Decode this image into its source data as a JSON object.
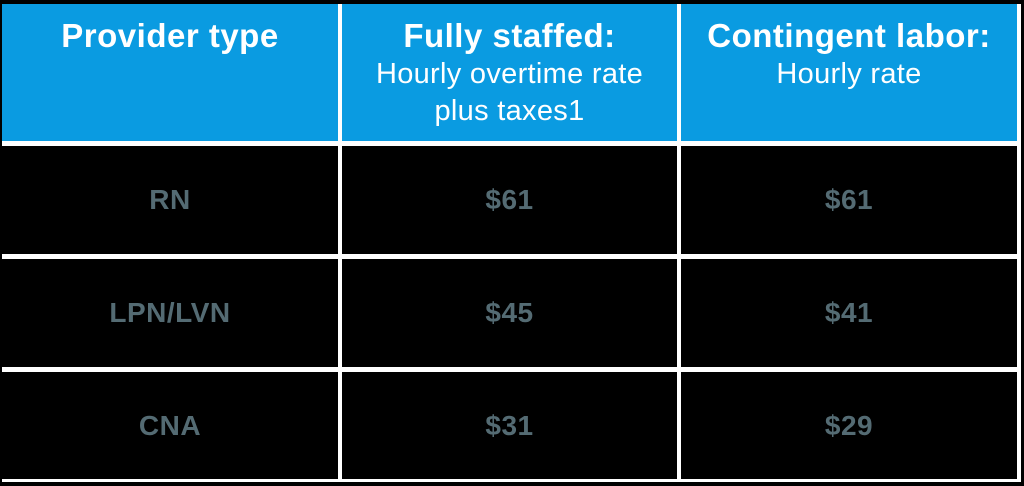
{
  "chart_data": {
    "type": "table",
    "header": [
      {
        "title": "Provider type",
        "subtitle_lines": []
      },
      {
        "title": "Fully staffed:",
        "subtitle_lines": [
          "Hourly overtime rate",
          "plus taxes1"
        ]
      },
      {
        "title": "Contingent labor:",
        "subtitle_lines": [
          "Hourly rate"
        ]
      }
    ],
    "rows": [
      {
        "provider": "RN",
        "fully_staffed_rate": "$61",
        "contingent_rate": "$61"
      },
      {
        "provider": "LPN/LVN",
        "fully_staffed_rate": "$45",
        "contingent_rate": "$41"
      },
      {
        "provider": "CNA",
        "fully_staffed_rate": "$31",
        "contingent_rate": "$29"
      }
    ]
  },
  "colors": {
    "header_bg": "#0a9be1",
    "header_text": "#ffffff",
    "cell_bg": "#000000",
    "cell_text": "#546b73",
    "grid_gap": "#ffffff",
    "frame": "#000000"
  }
}
